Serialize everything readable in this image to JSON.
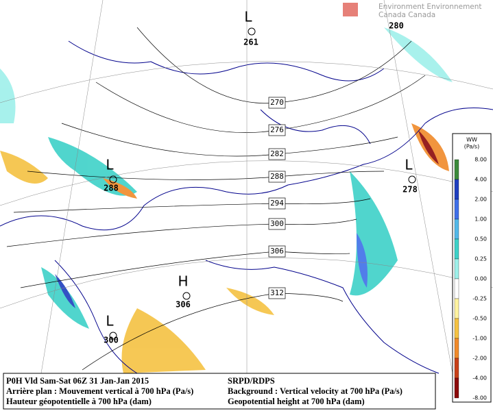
{
  "logo": {
    "line1": "Environment Environnement",
    "line2": "Canada Canada"
  },
  "centers": [
    {
      "symbol": "L",
      "value": "261"
    },
    {
      "symbol": "",
      "value": "280"
    },
    {
      "symbol": "L",
      "value": "288"
    },
    {
      "symbol": "L",
      "value": "278"
    },
    {
      "symbol": "H",
      "value": "306"
    },
    {
      "symbol": "L",
      "value": "300"
    }
  ],
  "contour_labels": [
    "270",
    "276",
    "282",
    "288",
    "294",
    "300",
    "306",
    "312"
  ],
  "legend": {
    "title": "WW",
    "unit": "(Pa/s)",
    "labels": [
      "8.00",
      "4.00",
      "2.00",
      "1.00",
      "0.50",
      "0.25",
      "0.00",
      "-0.25",
      "-0.50",
      "-1.00",
      "-2.00",
      "-4.00",
      "-8.00"
    ],
    "colors": [
      "#3c8a3c",
      "#1f3fbf",
      "#3f6fe8",
      "#52b8e8",
      "#3ed1c8",
      "#9ef0ea",
      "#ffffff",
      "#fff3a0",
      "#f5c242",
      "#f08a2a",
      "#c84018",
      "#8b0a0a"
    ]
  },
  "footer": {
    "left": [
      "P0H Vld Sam-Sat 06Z 31 Jan-Jan 2015",
      "Arrière plan : Mouvement vertical à 700 hPa (Pa/s)",
      "Hauteur géopotentielle à 700 hPa (dam)"
    ],
    "right": [
      "SRPD/RDPS",
      "Background : Vertical velocity at 700 hPa (Pa/s)",
      "Geopotential height at 700 hPa (dam)"
    ]
  }
}
